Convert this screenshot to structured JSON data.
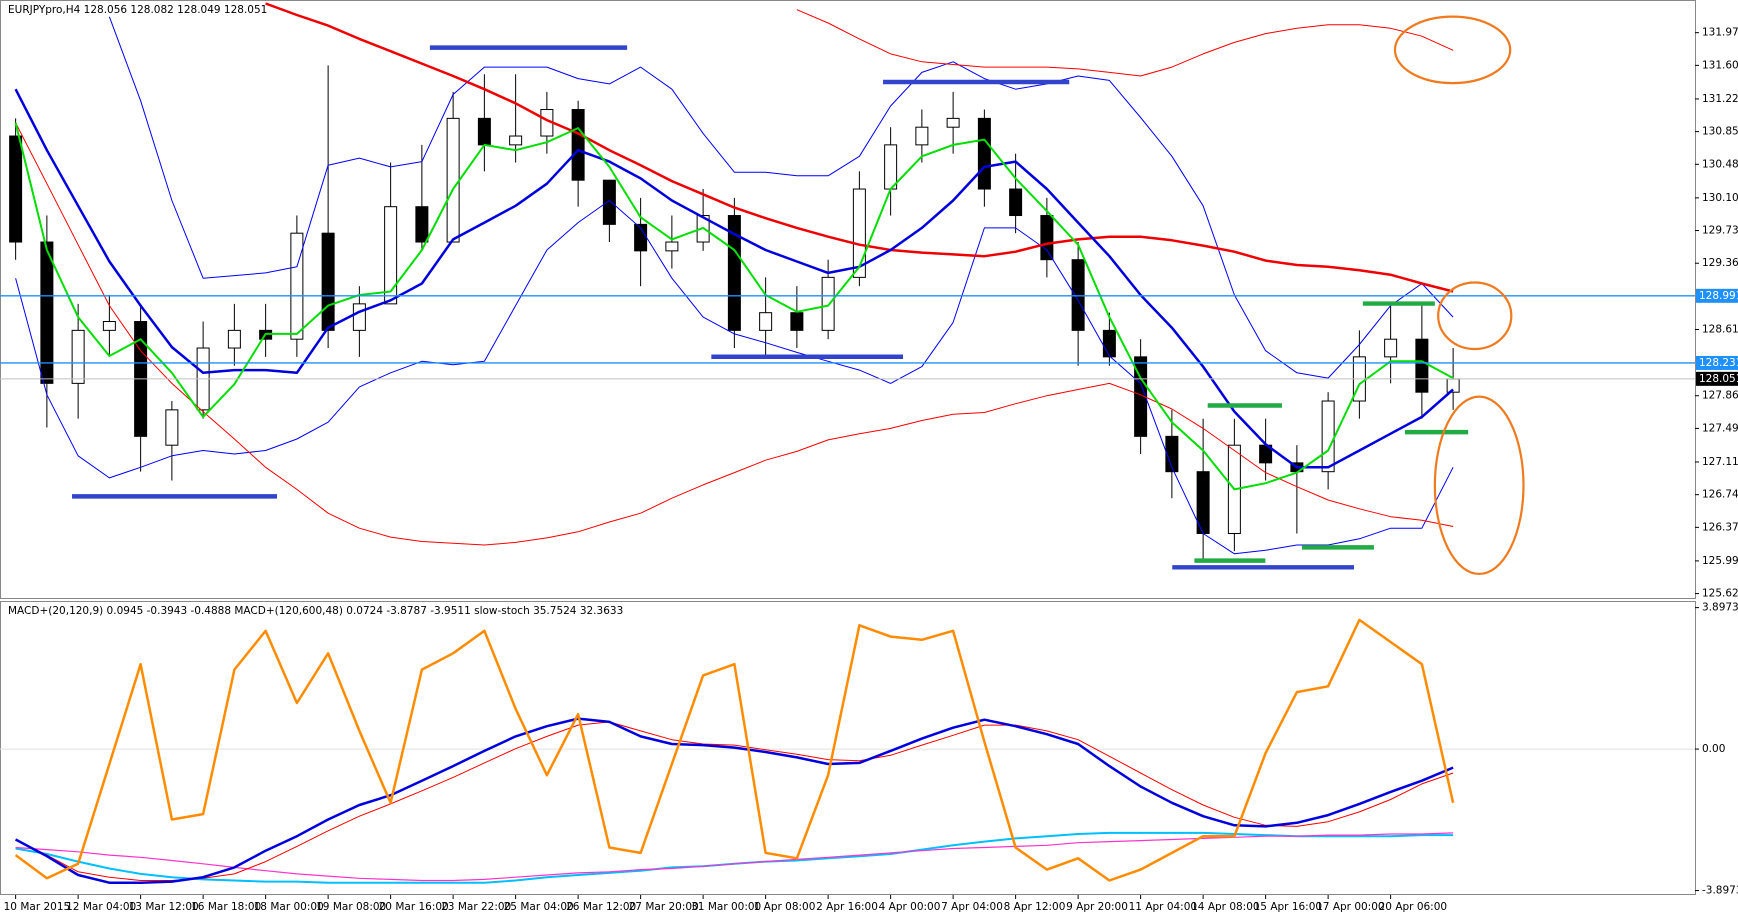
{
  "chart_data": [
    {
      "type": "candlestick",
      "title": "EURJPYpro,H4  128.056 128.082 128.049 128.051",
      "open": [
        130.8,
        129.6,
        128.0,
        128.6,
        128.7,
        127.3,
        127.7,
        128.4,
        128.6,
        128.5,
        129.7,
        128.6,
        128.9,
        130.0,
        129.6,
        131.0,
        130.7,
        130.8,
        131.1,
        130.3,
        129.8,
        129.5,
        129.6,
        129.9,
        128.6,
        128.8,
        128.6,
        129.2,
        130.2,
        130.7,
        130.9,
        131.0,
        130.2,
        129.9,
        129.4,
        128.6,
        128.3,
        127.4,
        127.0,
        126.3,
        127.3,
        127.1,
        127.0,
        127.8,
        128.3,
        128.5,
        127.9
      ],
      "high": [
        131.0,
        129.9,
        128.9,
        129.0,
        128.9,
        127.8,
        128.7,
        128.9,
        128.9,
        129.9,
        131.6,
        129.1,
        130.5,
        130.7,
        131.3,
        131.5,
        131.5,
        131.3,
        131.2,
        130.3,
        130.1,
        129.9,
        130.2,
        130.1,
        129.2,
        129.1,
        129.4,
        130.4,
        130.9,
        131.1,
        131.3,
        131.1,
        130.6,
        130.1,
        129.6,
        128.8,
        128.5,
        127.7,
        127.6,
        127.6,
        127.6,
        127.3,
        127.9,
        128.6,
        128.9,
        128.9,
        128.4
      ],
      "low": [
        129.4,
        127.5,
        127.6,
        128.3,
        127.0,
        126.9,
        127.6,
        128.2,
        128.3,
        128.3,
        128.4,
        128.3,
        128.9,
        129.5,
        129.6,
        130.4,
        130.5,
        130.6,
        130.0,
        129.6,
        129.1,
        129.3,
        129.5,
        128.4,
        128.3,
        128.4,
        128.5,
        129.1,
        129.9,
        130.5,
        130.6,
        130.0,
        129.7,
        129.2,
        128.2,
        128.2,
        127.2,
        126.7,
        126.0,
        126.1,
        126.9,
        126.3,
        126.8,
        127.6,
        128.0,
        127.6,
        127.7
      ],
      "close": [
        129.6,
        128.0,
        128.6,
        128.7,
        127.4,
        127.7,
        128.4,
        128.6,
        128.5,
        129.7,
        128.6,
        128.9,
        130.0,
        129.6,
        131.0,
        130.7,
        130.8,
        131.1,
        130.3,
        129.8,
        129.5,
        129.6,
        129.9,
        128.6,
        128.8,
        128.6,
        129.2,
        130.2,
        130.7,
        130.9,
        131.0,
        130.2,
        129.9,
        129.4,
        128.6,
        128.3,
        127.4,
        127.0,
        126.3,
        127.3,
        127.1,
        127.0,
        127.8,
        128.3,
        128.5,
        127.9,
        128.05
      ],
      "series": [
        {
          "color": "#0000ff",
          "width": 1,
          "values": [
            null,
            null,
            null,
            132.15,
            131.2,
            130.07,
            129.19,
            129.22,
            129.25,
            129.32,
            130.47,
            130.55,
            130.45,
            130.51,
            131.27,
            131.58,
            131.58,
            131.58,
            131.45,
            131.39,
            131.58,
            131.33,
            130.83,
            130.39,
            130.39,
            130.35,
            130.35,
            130.57,
            131.14,
            131.52,
            131.64,
            131.45,
            131.33,
            131.39,
            131.48,
            131.43,
            131.01,
            130.57,
            130.01,
            129.0,
            128.37,
            128.12,
            128.06,
            128.44,
            128.88,
            129.13,
            128.75
          ]
        },
        {
          "color": "#0000ff",
          "width": 1,
          "values": [
            129.19,
            127.87,
            127.18,
            126.93,
            127.05,
            127.18,
            127.24,
            127.2,
            127.24,
            127.37,
            127.56,
            127.96,
            128.12,
            128.25,
            128.21,
            128.25,
            128.88,
            129.51,
            129.82,
            130.07,
            129.76,
            129.19,
            128.75,
            128.56,
            128.46,
            128.35,
            128.25,
            128.15,
            128.0,
            128.19,
            128.69,
            129.76,
            129.76,
            129.51,
            128.94,
            128.31,
            128.0,
            127.05,
            126.3,
            126.07,
            126.11,
            126.17,
            126.17,
            126.24,
            126.36,
            126.36,
            127.05
          ]
        },
        {
          "color": "#ff0000",
          "width": 1,
          "values": [
            null,
            null,
            null,
            null,
            null,
            null,
            null,
            null,
            null,
            null,
            null,
            null,
            null,
            null,
            null,
            null,
            null,
            null,
            null,
            null,
            null,
            null,
            null,
            null,
            null,
            132.23,
            132.08,
            131.9,
            131.73,
            131.64,
            131.61,
            131.58,
            131.58,
            131.58,
            131.56,
            131.52,
            131.48,
            131.58,
            131.73,
            131.86,
            131.96,
            132.02,
            132.06,
            132.06,
            132.02,
            131.93,
            131.77
          ]
        },
        {
          "color": "#ff0000",
          "width": 1,
          "values": [
            130.95,
            130.26,
            129.57,
            128.88,
            128.37,
            128.0,
            127.68,
            127.37,
            127.05,
            126.8,
            126.53,
            126.36,
            126.26,
            126.21,
            126.19,
            126.17,
            126.2,
            126.25,
            126.32,
            126.43,
            126.53,
            126.7,
            126.85,
            126.99,
            127.13,
            127.23,
            127.36,
            127.43,
            127.49,
            127.58,
            127.65,
            127.67,
            127.77,
            127.86,
            127.93,
            128.0,
            127.87,
            127.71,
            127.49,
            127.24,
            126.99,
            126.83,
            126.68,
            126.58,
            126.49,
            126.45,
            126.38
          ]
        },
        {
          "color": "#ee0000",
          "width": 2.5,
          "values": [
            null,
            null,
            null,
            null,
            null,
            null,
            null,
            null,
            132.3,
            132.17,
            132.05,
            131.9,
            131.76,
            131.62,
            131.48,
            131.33,
            131.17,
            130.98,
            130.83,
            130.64,
            130.47,
            130.29,
            130.14,
            129.99,
            129.87,
            129.76,
            129.66,
            129.57,
            129.51,
            129.48,
            129.46,
            129.44,
            129.49,
            129.58,
            129.63,
            129.66,
            129.66,
            129.62,
            129.56,
            129.49,
            129.39,
            129.34,
            129.32,
            129.28,
            129.23,
            129.13,
            129.04
          ]
        },
        {
          "color": "#0000dd",
          "width": 2.5,
          "values": [
            131.33,
            130.64,
            130.01,
            129.38,
            128.88,
            128.41,
            128.12,
            128.15,
            128.15,
            128.12,
            128.63,
            128.81,
            128.94,
            129.13,
            129.63,
            129.82,
            130.01,
            130.26,
            130.64,
            130.51,
            130.32,
            130.07,
            129.88,
            129.69,
            129.51,
            129.38,
            129.25,
            129.32,
            129.51,
            129.76,
            130.07,
            130.45,
            130.51,
            130.2,
            129.82,
            129.44,
            129.0,
            128.63,
            128.19,
            127.68,
            127.31,
            127.05,
            127.05,
            127.24,
            127.43,
            127.62,
            127.93
          ]
        },
        {
          "color": "#00dd00",
          "width": 2,
          "values": [
            130.95,
            129.51,
            128.75,
            128.31,
            128.5,
            128.12,
            127.62,
            127.99,
            128.56,
            128.56,
            128.88,
            129.0,
            129.04,
            129.51,
            130.2,
            130.7,
            130.64,
            130.73,
            130.89,
            130.45,
            129.88,
            129.63,
            129.76,
            129.51,
            129.0,
            128.81,
            128.88,
            129.32,
            130.2,
            130.57,
            130.7,
            130.76,
            130.32,
            129.95,
            129.57,
            128.75,
            128.06,
            127.56,
            127.24,
            126.8,
            126.87,
            126.99,
            127.24,
            127.99,
            128.25,
            128.25,
            128.06
          ]
        }
      ],
      "levels": [
        128.991,
        128.231
      ],
      "level_color": "#1e90ff",
      "last_price": 128.051,
      "ylim": [
        125.57,
        132.34
      ],
      "yticks": [
        {
          "value": 131.97,
          "label": "131.970"
        },
        {
          "value": 131.6,
          "label": "131.600"
        },
        {
          "value": 131.22,
          "label": "131.220"
        },
        {
          "value": 130.85,
          "label": "130.850"
        },
        {
          "value": 130.48,
          "label": "130.480"
        },
        {
          "value": 130.1,
          "label": "130.100"
        },
        {
          "value": 129.73,
          "label": "129.730"
        },
        {
          "value": 129.36,
          "label": "129.360"
        },
        {
          "value": 128.61,
          "label": "128.610"
        },
        {
          "value": 127.86,
          "label": "127.860"
        },
        {
          "value": 127.49,
          "label": "127.490"
        },
        {
          "value": 127.11,
          "label": "127.110"
        },
        {
          "value": 126.74,
          "label": "126.740"
        },
        {
          "value": 126.37,
          "label": "126.370"
        },
        {
          "value": 125.99,
          "label": "125.990"
        },
        {
          "value": 125.62,
          "label": "125.620"
        }
      ],
      "grid": false
    },
    {
      "type": "line",
      "title": "MACD+(20,120,9) 0.0945 -0.3943 -0.4888  MACD+(120,600,48) 0.0724 -3.8787 -3.9511  slow-stoch 35.7524 32.3633",
      "categories": [
        "10 Mar 2015",
        null,
        "12 Mar 04:00",
        null,
        "13 Mar 12:00",
        null,
        "16 Mar 18:00",
        null,
        "18 Mar 00:00",
        null,
        "19 Mar 08:00",
        null,
        "20 Mar 16:00",
        null,
        "23 Mar 22:00",
        null,
        "25 Mar 04:00",
        null,
        "26 Mar 12:00",
        null,
        "27 Mar 20:00",
        null,
        "31 Mar 00:00",
        null,
        "1 Apr 08:00",
        null,
        "2 Apr 16:00",
        null,
        "4 Apr 00:00",
        null,
        "7 Apr 04:00",
        null,
        "8 Apr 12:00",
        null,
        "9 Apr 20:00",
        null,
        "11 Apr 04:00",
        null,
        "14 Apr 08:00",
        null,
        "15 Apr 16:00",
        null,
        "17 Apr 00:00",
        null,
        "20 Apr 06:00",
        null,
        null
      ],
      "series": [
        {
          "color": "#00bfff",
          "width": 2,
          "values": [
            -2.74,
            -2.89,
            -3.1,
            -3.29,
            -3.44,
            -3.53,
            -3.59,
            -3.62,
            -3.65,
            -3.65,
            -3.68,
            -3.68,
            -3.68,
            -3.68,
            -3.68,
            -3.68,
            -3.62,
            -3.53,
            -3.47,
            -3.41,
            -3.35,
            -3.26,
            -3.23,
            -3.16,
            -3.1,
            -3.07,
            -3.01,
            -2.95,
            -2.89,
            -2.77,
            -2.65,
            -2.55,
            -2.46,
            -2.4,
            -2.34,
            -2.31,
            -2.31,
            -2.31,
            -2.31,
            -2.34,
            -2.37,
            -2.4,
            -2.4,
            -2.4,
            -2.4,
            -2.37,
            -2.37
          ]
        },
        {
          "color": "#ff33cc",
          "width": 1.2,
          "values": [
            -2.71,
            -2.77,
            -2.83,
            -2.92,
            -2.98,
            -3.07,
            -3.16,
            -3.26,
            -3.35,
            -3.44,
            -3.5,
            -3.56,
            -3.59,
            -3.62,
            -3.62,
            -3.59,
            -3.53,
            -3.47,
            -3.41,
            -3.38,
            -3.32,
            -3.29,
            -3.23,
            -3.16,
            -3.1,
            -3.04,
            -2.98,
            -2.92,
            -2.86,
            -2.8,
            -2.74,
            -2.71,
            -2.68,
            -2.65,
            -2.58,
            -2.55,
            -2.52,
            -2.49,
            -2.46,
            -2.43,
            -2.4,
            -2.4,
            -2.37,
            -2.37,
            -2.34,
            -2.34,
            -2.31
          ]
        },
        {
          "color": "#ff0000",
          "width": 1,
          "values": [
            -2.49,
            -2.92,
            -3.38,
            -3.53,
            -3.62,
            -3.62,
            -3.56,
            -3.44,
            -3.1,
            -2.68,
            -2.25,
            -1.85,
            -1.51,
            -1.15,
            -0.78,
            -0.38,
            0.01,
            0.35,
            0.66,
            0.75,
            0.5,
            0.26,
            0.14,
            0.11,
            -0.02,
            -0.14,
            -0.29,
            -0.32,
            -0.17,
            0.11,
            0.38,
            0.66,
            0.66,
            0.5,
            0.26,
            -0.2,
            -0.66,
            -1.12,
            -1.54,
            -1.88,
            -2.1,
            -2.13,
            -2.0,
            -1.73,
            -1.39,
            -0.96,
            -0.66
          ]
        },
        {
          "color": "#0000dd",
          "width": 2.5,
          "values": [
            -2.49,
            -2.95,
            -3.47,
            -3.68,
            -3.68,
            -3.65,
            -3.53,
            -3.26,
            -2.8,
            -2.4,
            -1.94,
            -1.54,
            -1.27,
            -0.87,
            -0.47,
            -0.05,
            0.35,
            0.63,
            0.84,
            0.75,
            0.35,
            0.14,
            0.11,
            0.04,
            -0.08,
            -0.23,
            -0.41,
            -0.38,
            -0.05,
            0.29,
            0.59,
            0.81,
            0.63,
            0.41,
            0.14,
            -0.47,
            -1.03,
            -1.48,
            -1.85,
            -2.1,
            -2.13,
            -2.03,
            -1.82,
            -1.51,
            -1.18,
            -0.87,
            -0.51
          ]
        },
        {
          "color": "#ff8c00",
          "width": 2.5,
          "values": [
            -2.92,
            -3.56,
            -3.16,
            -0.41,
            2.34,
            -1.94,
            -1.79,
            2.19,
            3.26,
            1.27,
            2.64,
            0.5,
            -1.48,
            2.19,
            2.64,
            3.26,
            1.11,
            -0.72,
            0.96,
            -2.71,
            -2.86,
            -0.41,
            2.03,
            2.34,
            -2.86,
            -3.01,
            -0.72,
            3.41,
            3.1,
            3.01,
            3.26,
            0.2,
            -2.71,
            -3.32,
            -3.01,
            -3.62,
            -3.32,
            -2.86,
            -2.4,
            -2.4,
            -0.11,
            1.57,
            1.73,
            3.56,
            2.95,
            2.34,
            -1.48
          ]
        }
      ],
      "ylim": [
        -4.02,
        4.08
      ],
      "yticks": [
        3.8973,
        {
          "value": 0,
          "label": "0.00"
        },
        -3.8973
      ],
      "grid": false
    }
  ]
}
